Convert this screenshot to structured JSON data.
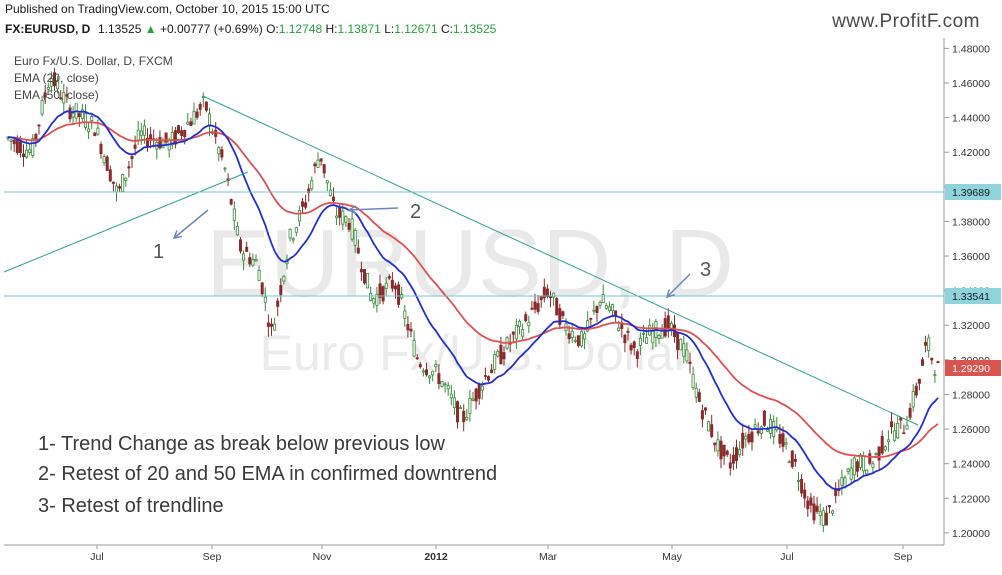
{
  "published": "Published on TradingView.com, October 10, 2015 15:00 UTC",
  "symbol": "FX:EURUSD, D",
  "last_price": "1.13525",
  "change": "+0.00777 (+0.69%)",
  "ohlc": {
    "o_label": "O:",
    "o": "1.12748",
    "h_label": "H:",
    "h": "1.13871",
    "l_label": "L:",
    "l": "1.12671",
    "c_label": "C:",
    "c": "1.13525"
  },
  "logo": "www.ProfitF.com",
  "legend": {
    "title": "Euro Fx/U.S. Dollar, D, FXCM",
    "ema1": "EMA (20, close)",
    "ema2": "EMA (50, close)"
  },
  "watermark": {
    "main": "EURUSD, D",
    "sub": "Euro Fx/U.S. Dollar"
  },
  "annotations": {
    "a1": "1",
    "a2": "2",
    "a3": "3",
    "notes": [
      "1- Trend Change as break below previous low",
      "2- Retest of 20 and 50 EMA in confirmed downtrend",
      "3- Retest of trendline"
    ]
  },
  "colors": {
    "up": "#3a8a3a",
    "down": "#8a2a2a",
    "ema20": "#1f2fd6",
    "ema50": "#e05050",
    "trendline": "#2aa58c",
    "hline": "#6cc9d0",
    "current": "#d9534f",
    "arrow": "#6a86c2"
  },
  "chart_data": {
    "type": "candlestick",
    "title": "Euro Fx/U.S. Dollar, D, FXCM",
    "x_ticks": [
      "Jul",
      "Sep",
      "Nov",
      "2012",
      "Mar",
      "May",
      "Jul",
      "Sep"
    ],
    "y_ticks": [
      "1.48000",
      "1.46000",
      "1.44000",
      "1.42000",
      "1.40000",
      "1.38000",
      "1.36000",
      "1.34000",
      "1.32000",
      "1.30000",
      "1.28000",
      "1.26000",
      "1.24000",
      "1.22000",
      "1.20000"
    ],
    "ylim": [
      1.193,
      1.486
    ],
    "price_labels": [
      {
        "value": 1.39689,
        "label": "1.39689"
      },
      {
        "value": 1.33541,
        "label": "1.33541"
      },
      {
        "value": 1.2929,
        "label": "1.29290"
      }
    ],
    "close_series": [
      {
        "month": "May 2011",
        "close": 1.428
      },
      {
        "month": "Jun 2011",
        "close": 1.445
      },
      {
        "month": "Jul 2011",
        "close": 1.435
      },
      {
        "month": "Aug 2011",
        "close": 1.448
      },
      {
        "month": "Sep 2011",
        "close": 1.345
      },
      {
        "month": "Oct 2011",
        "close": 1.398
      },
      {
        "month": "Nov 2011",
        "close": 1.345
      },
      {
        "month": "Dec 2011",
        "close": 1.295
      },
      {
        "month": "Jan 2012",
        "close": 1.31
      },
      {
        "month": "Feb 2012",
        "close": 1.33
      },
      {
        "month": "Mar 2012",
        "close": 1.325
      },
      {
        "month": "Apr 2012",
        "close": 1.32
      },
      {
        "month": "May 2012",
        "close": 1.26
      },
      {
        "month": "Jun 2012",
        "close": 1.265
      },
      {
        "month": "Jul 2012",
        "close": 1.225
      },
      {
        "month": "Aug 2012",
        "close": 1.25
      },
      {
        "month": "Sep 2012",
        "close": 1.293
      }
    ]
  }
}
